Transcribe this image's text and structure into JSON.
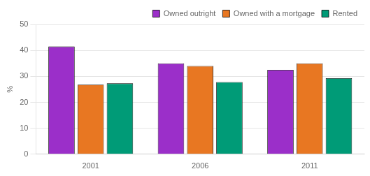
{
  "chart_data": {
    "type": "bar",
    "categories": [
      "2001",
      "2006",
      "2011"
    ],
    "series": [
      {
        "name": "Owned outright",
        "color": "#9B2FC9",
        "values": [
          41.5,
          35.0,
          32.5
        ]
      },
      {
        "name": "Owned with a mortgage",
        "color": "#E87722",
        "values": [
          26.8,
          34.0,
          35.0
        ]
      },
      {
        "name": "Rented",
        "color": "#009B77",
        "values": [
          27.3,
          27.8,
          29.3
        ]
      }
    ],
    "ylabel": "%",
    "ylim": [
      0,
      50
    ],
    "yticks": [
      0,
      10,
      20,
      30,
      40,
      50
    ],
    "grid": true,
    "legend": "upper right"
  }
}
